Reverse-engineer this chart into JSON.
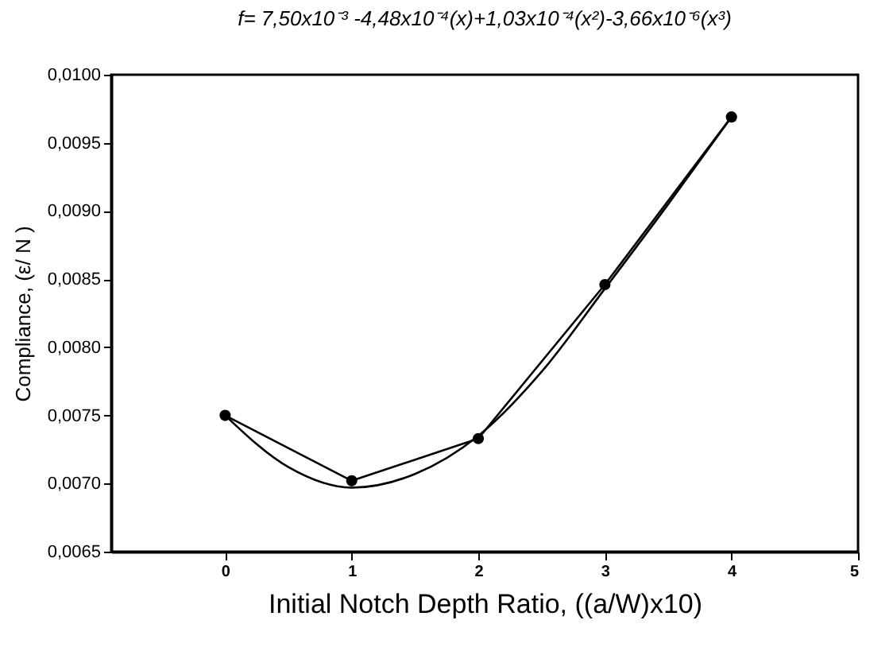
{
  "chart_data": {
    "type": "line",
    "title": "f= 7,50x10⁻³ -4,48x10⁻⁴(x)+1,03x10⁻⁴(x²)-3,66x10⁻⁶(x³)",
    "xlabel": "Initial Notch Depth Ratio, ((a/W)x10)",
    "ylabel": "Compliance, (ε/ N )",
    "xlim": [
      -0.9,
      5
    ],
    "xticks": [
      0,
      1,
      2,
      3,
      4,
      5
    ],
    "ylim": [
      0.0065,
      0.01
    ],
    "yticks": [
      {
        "value": 0.0065,
        "label": "0,0065"
      },
      {
        "value": 0.007,
        "label": "0,0070"
      },
      {
        "value": 0.0075,
        "label": "0,0075"
      },
      {
        "value": 0.008,
        "label": "0,0080"
      },
      {
        "value": 0.0085,
        "label": "0,0085"
      },
      {
        "value": 0.009,
        "label": "0,0090"
      },
      {
        "value": 0.0095,
        "label": "0,0095"
      },
      {
        "value": 0.01,
        "label": "0,0100"
      }
    ],
    "grid": false,
    "series": [
      {
        "marker": "circle",
        "color": "#000000",
        "x": [
          0,
          1,
          2,
          3,
          4
        ],
        "values": [
          0.0075,
          0.00702,
          0.00733,
          0.00846,
          0.00969
        ]
      },
      {
        "marker": "none",
        "color": "#000000",
        "x": [
          0,
          0.5,
          1,
          1.5,
          2,
          2.5,
          3,
          3.5,
          4
        ],
        "values": [
          0.0075,
          0.00712,
          0.00697,
          0.00707,
          0.00735,
          0.00782,
          0.00843,
          0.00905,
          0.00969
        ]
      }
    ]
  }
}
